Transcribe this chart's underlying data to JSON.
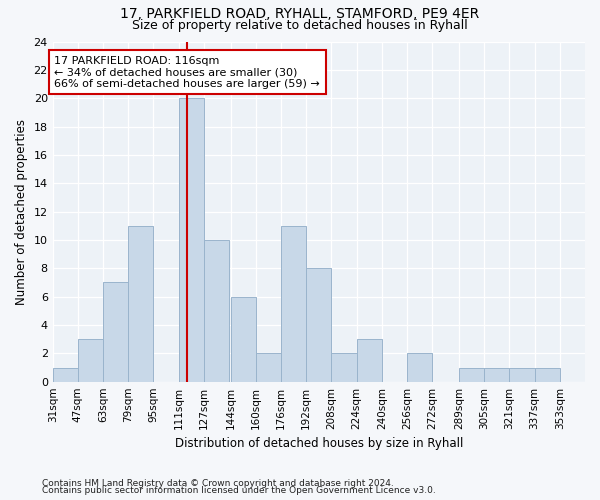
{
  "title1": "17, PARKFIELD ROAD, RYHALL, STAMFORD, PE9 4ER",
  "title2": "Size of property relative to detached houses in Ryhall",
  "xlabel": "Distribution of detached houses by size in Ryhall",
  "ylabel": "Number of detached properties",
  "bins": [
    31,
    47,
    63,
    79,
    95,
    111,
    127,
    144,
    160,
    176,
    192,
    208,
    224,
    240,
    256,
    272,
    289,
    305,
    321,
    337,
    353
  ],
  "counts": [
    1,
    3,
    7,
    11,
    0,
    20,
    10,
    6,
    2,
    11,
    8,
    2,
    3,
    0,
    2,
    0,
    1,
    1,
    1,
    1
  ],
  "bar_color": "#c8d8e8",
  "bar_edge_color": "#9ab4cc",
  "property_size": 116,
  "vline_color": "#cc0000",
  "annotation_text": "17 PARKFIELD ROAD: 116sqm\n← 34% of detached houses are smaller (30)\n66% of semi-detached houses are larger (59) →",
  "annotation_box_color": "#ffffff",
  "annotation_box_edge": "#cc0000",
  "ylim": [
    0,
    24
  ],
  "yticks": [
    0,
    2,
    4,
    6,
    8,
    10,
    12,
    14,
    16,
    18,
    20,
    22,
    24
  ],
  "footnote1": "Contains HM Land Registry data © Crown copyright and database right 2024.",
  "footnote2": "Contains public sector information licensed under the Open Government Licence v3.0.",
  "bg_color": "#edf2f7",
  "fig_bg": "#f5f7fa"
}
